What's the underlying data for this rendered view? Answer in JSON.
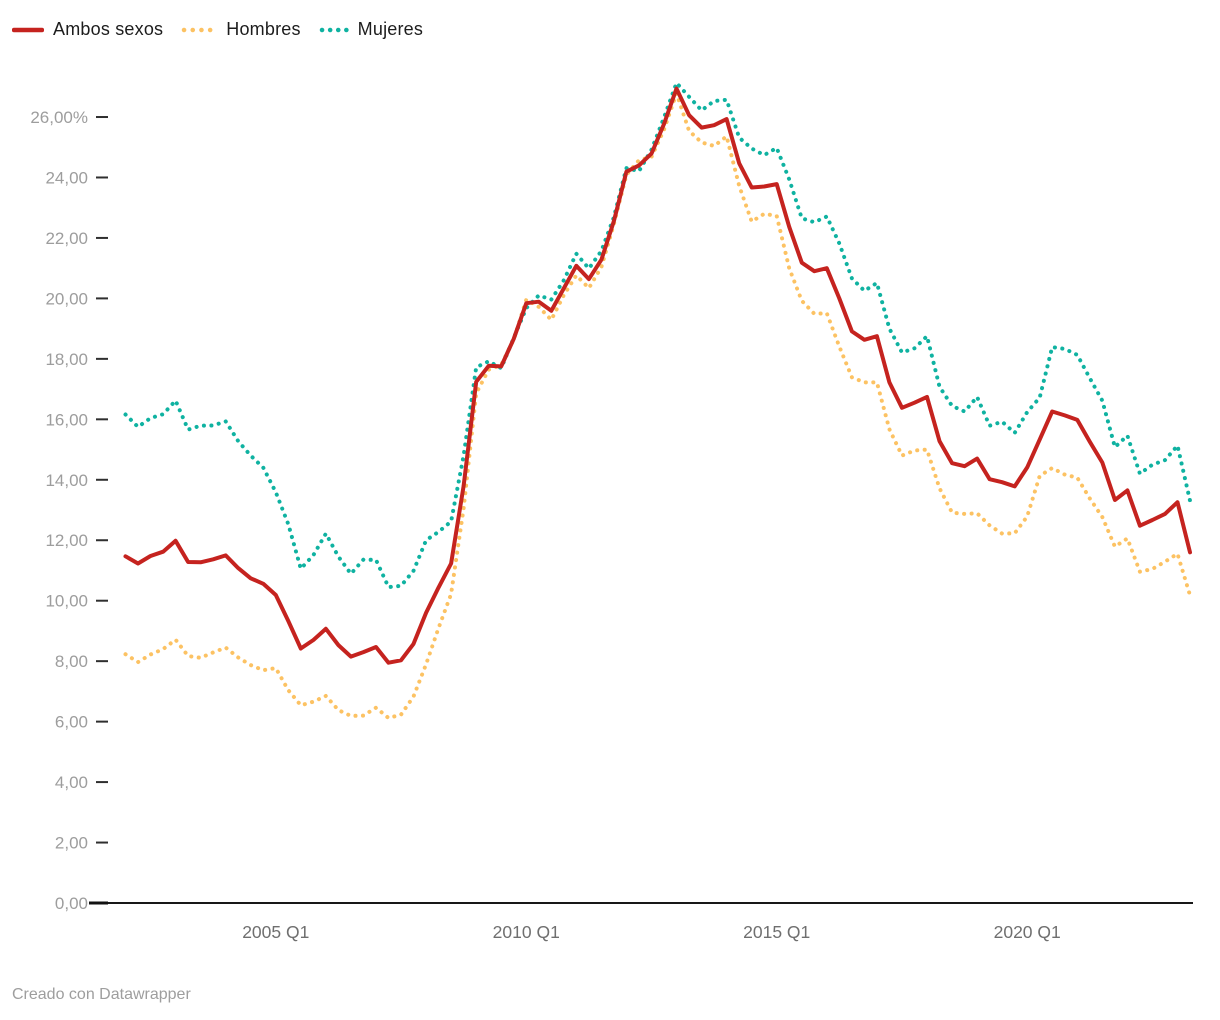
{
  "legend": {
    "items": [
      {
        "id": "ambos-sexos",
        "label": "Ambos sexos",
        "color": "#c5231f",
        "style": "solid"
      },
      {
        "id": "hombres",
        "label": "Hombres",
        "color": "#fcc263",
        "style": "dotted"
      },
      {
        "id": "mujeres",
        "label": "Mujeres",
        "color": "#0fb2a1",
        "style": "dotted"
      }
    ]
  },
  "footer": {
    "text": "Creado con Datawrapper"
  },
  "axes": {
    "y_ticks": [
      {
        "value": 0,
        "label": "0,00"
      },
      {
        "value": 2,
        "label": "2,00"
      },
      {
        "value": 4,
        "label": "4,00"
      },
      {
        "value": 6,
        "label": "6,00"
      },
      {
        "value": 8,
        "label": "8,00"
      },
      {
        "value": 10,
        "label": "10,00"
      },
      {
        "value": 12,
        "label": "12,00"
      },
      {
        "value": 14,
        "label": "14,00"
      },
      {
        "value": 16,
        "label": "16,00"
      },
      {
        "value": 18,
        "label": "18,00"
      },
      {
        "value": 20,
        "label": "20,00"
      },
      {
        "value": 22,
        "label": "22,00"
      },
      {
        "value": 24,
        "label": "24,00"
      },
      {
        "value": 26,
        "label": "26,00%"
      }
    ],
    "x_ticks": [
      {
        "label": "2005 Q1",
        "quarter_index": 12
      },
      {
        "label": "2010 Q1",
        "quarter_index": 32
      },
      {
        "label": "2015 Q1",
        "quarter_index": 52
      },
      {
        "label": "2020 Q1",
        "quarter_index": 72
      }
    ]
  },
  "chart_data": {
    "type": "line",
    "title": "",
    "xlabel": "",
    "ylabel": "",
    "unit": "%",
    "ylim": [
      0,
      27.5
    ],
    "grid": false,
    "legend_position": "top-left",
    "x": [
      "2002 Q1",
      "2002 Q2",
      "2002 Q3",
      "2002 Q4",
      "2003 Q1",
      "2003 Q2",
      "2003 Q3",
      "2003 Q4",
      "2004 Q1",
      "2004 Q2",
      "2004 Q3",
      "2004 Q4",
      "2005 Q1",
      "2005 Q2",
      "2005 Q3",
      "2005 Q4",
      "2006 Q1",
      "2006 Q2",
      "2006 Q3",
      "2006 Q4",
      "2007 Q1",
      "2007 Q2",
      "2007 Q3",
      "2007 Q4",
      "2008 Q1",
      "2008 Q2",
      "2008 Q3",
      "2008 Q4",
      "2009 Q1",
      "2009 Q2",
      "2009 Q3",
      "2009 Q4",
      "2010 Q1",
      "2010 Q2",
      "2010 Q3",
      "2010 Q4",
      "2011 Q1",
      "2011 Q2",
      "2011 Q3",
      "2011 Q4",
      "2012 Q1",
      "2012 Q2",
      "2012 Q3",
      "2012 Q4",
      "2013 Q1",
      "2013 Q2",
      "2013 Q3",
      "2013 Q4",
      "2014 Q1",
      "2014 Q2",
      "2014 Q3",
      "2014 Q4",
      "2015 Q1",
      "2015 Q2",
      "2015 Q3",
      "2015 Q4",
      "2016 Q1",
      "2016 Q2",
      "2016 Q3",
      "2016 Q4",
      "2017 Q1",
      "2017 Q2",
      "2017 Q3",
      "2017 Q4",
      "2018 Q1",
      "2018 Q2",
      "2018 Q3",
      "2018 Q4",
      "2019 Q1",
      "2019 Q2",
      "2019 Q3",
      "2019 Q4",
      "2020 Q1",
      "2020 Q2",
      "2020 Q3",
      "2020 Q4",
      "2021 Q1",
      "2021 Q2",
      "2021 Q3",
      "2021 Q4",
      "2022 Q1",
      "2022 Q2",
      "2022 Q3",
      "2022 Q4",
      "2023 Q1",
      "2023 Q2"
    ],
    "series": [
      {
        "name": "Ambos sexos",
        "color": "#c5231f",
        "style": "solid",
        "values": [
          11.47,
          11.23,
          11.48,
          11.62,
          11.98,
          11.28,
          11.27,
          11.37,
          11.5,
          11.08,
          10.74,
          10.56,
          10.19,
          9.33,
          8.42,
          8.7,
          9.07,
          8.53,
          8.15,
          8.3,
          8.47,
          7.95,
          8.03,
          8.57,
          9.6,
          10.44,
          11.23,
          13.79,
          17.24,
          17.77,
          17.75,
          18.66,
          19.84,
          19.89,
          19.59,
          20.33,
          21.08,
          20.64,
          21.28,
          22.56,
          24.19,
          24.4,
          24.79,
          25.77,
          26.94,
          26.06,
          25.65,
          25.73,
          25.93,
          24.47,
          23.67,
          23.7,
          23.78,
          22.37,
          21.18,
          20.9,
          21.0,
          20.0,
          18.91,
          18.63,
          18.75,
          17.22,
          16.38,
          16.55,
          16.74,
          15.28,
          14.55,
          14.45,
          14.7,
          14.02,
          13.92,
          13.78,
          14.41,
          15.33,
          16.26,
          16.13,
          15.98,
          15.26,
          14.57,
          13.33,
          13.65,
          12.48,
          12.67,
          12.87,
          13.26,
          11.6
        ]
      },
      {
        "name": "Hombres",
        "color": "#fcc263",
        "style": "dotted",
        "values": [
          8.23,
          7.97,
          8.22,
          8.4,
          8.71,
          8.17,
          8.11,
          8.29,
          8.45,
          8.12,
          7.87,
          7.7,
          7.77,
          7.04,
          6.54,
          6.66,
          6.85,
          6.38,
          6.19,
          6.2,
          6.46,
          6.12,
          6.23,
          6.83,
          7.9,
          9.1,
          10.22,
          13.05,
          16.86,
          17.64,
          17.8,
          18.64,
          19.96,
          19.72,
          19.29,
          20.11,
          20.76,
          20.34,
          21.04,
          22.46,
          24.09,
          24.57,
          24.68,
          25.58,
          26.78,
          25.54,
          25.16,
          25.04,
          25.36,
          23.72,
          22.54,
          22.8,
          22.73,
          21.0,
          19.92,
          19.49,
          19.51,
          18.41,
          17.39,
          17.22,
          17.22,
          15.67,
          14.8,
          14.97,
          15.0,
          13.72,
          12.91,
          12.87,
          12.89,
          12.49,
          12.22,
          12.23,
          12.79,
          14.13,
          14.39,
          14.17,
          14.07,
          13.38,
          12.77,
          11.79,
          12.06,
          10.96,
          11.05,
          11.29,
          11.55,
          10.18
        ]
      },
      {
        "name": "Mujeres",
        "color": "#0fb2a1",
        "style": "dotted",
        "values": [
          16.16,
          15.75,
          16.04,
          16.17,
          16.62,
          15.66,
          15.79,
          15.8,
          15.93,
          15.28,
          14.8,
          14.4,
          13.59,
          12.53,
          11.06,
          11.51,
          12.22,
          11.46,
          10.89,
          11.36,
          11.35,
          10.45,
          10.49,
          10.99,
          12.0,
          12.28,
          12.62,
          14.79,
          17.72,
          17.92,
          17.69,
          18.69,
          19.68,
          20.1,
          19.96,
          20.6,
          21.48,
          20.99,
          21.57,
          22.69,
          24.31,
          24.21,
          24.92,
          25.98,
          27.13,
          26.67,
          26.22,
          26.53,
          26.57,
          25.32,
          24.96,
          24.74,
          24.98,
          23.94,
          22.65,
          22.52,
          22.71,
          21.82,
          20.66,
          20.25,
          20.51,
          19.0,
          18.21,
          18.35,
          18.75,
          17.08,
          16.44,
          16.26,
          16.74,
          15.79,
          15.92,
          15.55,
          16.24,
          16.72,
          18.39,
          18.33,
          18.13,
          17.36,
          16.62,
          15.08,
          15.46,
          14.2,
          14.5,
          14.65,
          15.13,
          13.31
        ]
      }
    ]
  }
}
